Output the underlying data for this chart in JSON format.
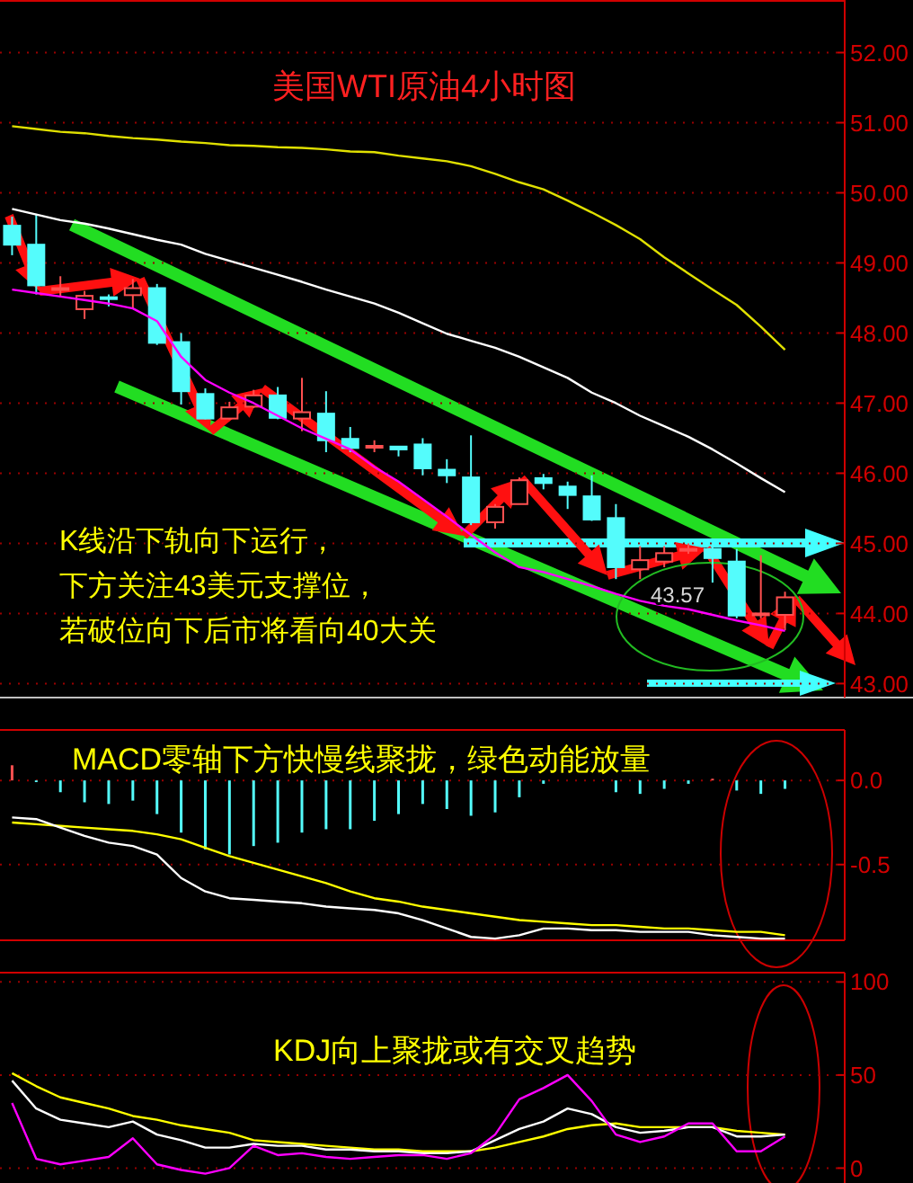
{
  "chart_data": [
    {
      "type": "candlestick",
      "title": "美国WTI原油4小时图",
      "categories": [
        null,
        null,
        null,
        null,
        null,
        null,
        null,
        null,
        null,
        null,
        null,
        null,
        null,
        null,
        null,
        null,
        null,
        null,
        null,
        null,
        null,
        null,
        null,
        null,
        null,
        null,
        null,
        null,
        null,
        null,
        null,
        null,
        null
      ],
      "ohlc": [
        [
          49.53,
          49.66,
          49.11,
          49.26
        ],
        [
          49.26,
          49.7,
          48.55,
          48.68
        ],
        [
          48.63,
          48.81,
          48.51,
          48.64
        ],
        [
          48.34,
          48.6,
          48.2,
          48.53
        ],
        [
          48.51,
          48.55,
          48.38,
          48.49
        ],
        [
          48.54,
          48.77,
          48.34,
          48.64
        ],
        [
          48.64,
          48.7,
          47.83,
          47.86
        ],
        [
          47.87,
          48.0,
          46.98,
          47.17
        ],
        [
          47.13,
          47.21,
          46.77,
          46.78
        ],
        [
          46.78,
          47.02,
          46.77,
          46.94
        ],
        [
          46.95,
          47.19,
          46.93,
          47.11
        ],
        [
          47.11,
          47.23,
          46.77,
          46.79
        ],
        [
          46.78,
          47.36,
          46.6,
          46.87
        ],
        [
          46.85,
          47.17,
          46.3,
          46.47
        ],
        [
          46.49,
          46.66,
          46.3,
          46.36
        ],
        [
          46.37,
          46.47,
          46.3,
          46.39
        ],
        [
          46.38,
          46.39,
          46.24,
          46.34
        ],
        [
          46.41,
          46.5,
          45.97,
          46.07
        ],
        [
          46.05,
          46.2,
          45.86,
          45.97
        ],
        [
          45.94,
          46.54,
          45.26,
          45.3
        ],
        [
          45.3,
          45.56,
          45.21,
          45.52
        ],
        [
          45.56,
          45.94,
          45.56,
          45.9
        ],
        [
          45.93,
          45.99,
          45.77,
          45.86
        ],
        [
          45.81,
          45.88,
          45.49,
          45.69
        ],
        [
          45.67,
          45.97,
          45.32,
          45.34
        ],
        [
          45.36,
          45.56,
          44.49,
          44.66
        ],
        [
          44.63,
          44.96,
          44.49,
          44.76
        ],
        [
          44.74,
          44.96,
          44.66,
          44.86
        ],
        [
          44.9,
          45.0,
          44.85,
          44.92
        ],
        [
          44.92,
          45.0,
          44.44,
          44.79
        ],
        [
          44.74,
          44.92,
          43.93,
          43.97
        ],
        [
          43.99,
          44.83,
          43.93,
          44.0
        ],
        [
          43.98,
          44.31,
          43.76,
          44.23
        ]
      ],
      "colors": [
        "#54fcfc",
        "#54fcfc",
        "#ff5050",
        "#ff5050",
        "#54fcfc",
        "#ff5050",
        "#54fcfc",
        "#54fcfc",
        "#54fcfc",
        "#ff5050",
        "#ff5050",
        "#54fcfc",
        "#ff5050",
        "#54fcfc",
        "#54fcfc",
        "#ff5050",
        "#54fcfc",
        "#54fcfc",
        "#54fcfc",
        "#54fcfc",
        "#ff5050",
        "#ff5050",
        "#54fcfc",
        "#54fcfc",
        "#54fcfc",
        "#54fcfc",
        "#ff5050",
        "#ff5050",
        "#ff5050",
        "#54fcfc",
        "#54fcfc",
        "#ff5050",
        "#ff5050"
      ],
      "series": [
        {
          "type": "line",
          "color": "#e0e000",
          "values": [
            50.95,
            50.91,
            50.87,
            50.85,
            50.81,
            50.78,
            50.76,
            50.73,
            50.71,
            50.68,
            50.67,
            50.65,
            50.64,
            50.62,
            50.59,
            50.58,
            50.53,
            50.49,
            50.45,
            50.38,
            50.27,
            50.15,
            50.05,
            49.89,
            49.72,
            49.54,
            49.34,
            49.08,
            48.85,
            48.62,
            48.4,
            48.09,
            47.76
          ]
        },
        {
          "type": "line",
          "color": "#ffffff",
          "values": [
            49.77,
            49.69,
            49.61,
            49.56,
            49.49,
            49.41,
            49.33,
            49.26,
            49.13,
            49.03,
            48.93,
            48.83,
            48.73,
            48.62,
            48.52,
            48.42,
            48.29,
            48.14,
            47.99,
            47.89,
            47.79,
            47.66,
            47.51,
            47.36,
            47.15,
            47.0,
            46.82,
            46.67,
            46.52,
            46.34,
            46.14,
            45.93,
            45.73
          ]
        },
        {
          "type": "line",
          "color": "#ff00ff",
          "values": [
            48.62,
            48.57,
            48.52,
            48.47,
            48.42,
            48.35,
            48.17,
            47.66,
            47.33,
            47.15,
            47.0,
            46.82,
            46.64,
            46.49,
            46.34,
            46.09,
            45.88,
            45.63,
            45.38,
            45.12,
            44.87,
            44.66,
            44.59,
            44.49,
            44.39,
            44.28,
            44.18,
            44.11,
            44.06,
            43.98,
            43.9,
            43.83,
            43.75
          ]
        }
      ],
      "ylim": [
        42.8,
        52.75
      ],
      "yticks": [
        {
          "value": 43,
          "label": "43.00"
        },
        {
          "value": 44,
          "label": "44.00"
        },
        {
          "value": 45,
          "label": "45.00"
        },
        {
          "value": 46,
          "label": "46.00"
        },
        {
          "value": 47,
          "label": "47.00"
        },
        {
          "value": 48,
          "label": "48.00"
        },
        {
          "value": 49,
          "label": "49.00"
        },
        {
          "value": 50,
          "label": "50.00"
        },
        {
          "value": 51,
          "label": "51.00"
        },
        {
          "value": 52,
          "label": "52.00"
        }
      ],
      "grid": "y",
      "tick_labels": "y",
      "annotations": [
        "K线沿下轨向下运行，",
        "下方关注43美元支撑位，",
        "若破位向下后市将看向40大关",
        "43.57"
      ]
    },
    {
      "type": "bar",
      "categories": [
        null,
        null,
        null,
        null,
        null,
        null,
        null,
        null,
        null,
        null,
        null,
        null,
        null,
        null,
        null,
        null,
        null,
        null,
        null,
        null,
        null,
        null,
        null,
        null,
        null,
        null,
        null,
        null,
        null,
        null,
        null,
        null,
        null
      ],
      "series": [
        {
          "type": "bar",
          "values": [
            0.09,
            -0.01,
            -0.07,
            -0.13,
            -0.14,
            -0.12,
            -0.2,
            -0.31,
            -0.41,
            -0.44,
            -0.39,
            -0.37,
            -0.31,
            -0.29,
            -0.29,
            -0.24,
            -0.2,
            -0.14,
            -0.17,
            -0.21,
            -0.19,
            -0.1,
            -0.02,
            null,
            null,
            -0.07,
            -0.08,
            -0.05,
            -0.02,
            0.01,
            -0.06,
            -0.08,
            -0.05
          ],
          "colors": [
            "#ff5050",
            "#54fcfc",
            "#54fcfc",
            "#54fcfc",
            "#54fcfc",
            "#54fcfc",
            "#54fcfc",
            "#54fcfc",
            "#54fcfc",
            "#54fcfc",
            "#54fcfc",
            "#54fcfc",
            "#54fcfc",
            "#54fcfc",
            "#54fcfc",
            "#54fcfc",
            "#54fcfc",
            "#54fcfc",
            "#54fcfc",
            "#54fcfc",
            "#54fcfc",
            "#54fcfc",
            "#54fcfc",
            null,
            null,
            "#54fcfc",
            "#54fcfc",
            "#54fcfc",
            "#54fcfc",
            "#ff5050",
            "#54fcfc",
            "#54fcfc",
            "#54fcfc"
          ]
        },
        {
          "type": "line",
          "color": "#ffff00",
          "values": [
            -0.25,
            -0.26,
            -0.27,
            -0.28,
            -0.29,
            -0.3,
            -0.32,
            -0.35,
            -0.4,
            -0.45,
            -0.49,
            -0.53,
            -0.57,
            -0.61,
            -0.66,
            -0.7,
            -0.72,
            -0.75,
            -0.77,
            -0.79,
            -0.81,
            -0.83,
            -0.84,
            -0.85,
            -0.86,
            -0.86,
            -0.87,
            -0.88,
            -0.88,
            -0.89,
            -0.9,
            -0.9,
            -0.92
          ]
        },
        {
          "type": "line",
          "color": "#ffffff",
          "values": [
            -0.22,
            -0.23,
            -0.28,
            -0.33,
            -0.37,
            -0.39,
            -0.44,
            -0.58,
            -0.66,
            -0.7,
            -0.71,
            -0.72,
            -0.73,
            -0.75,
            -0.76,
            -0.77,
            -0.79,
            -0.83,
            -0.88,
            -0.93,
            -0.94,
            -0.92,
            -0.88,
            -0.88,
            -0.89,
            -0.89,
            -0.9,
            -0.9,
            -0.9,
            -0.92,
            -0.93,
            -0.94,
            -0.94
          ]
        }
      ],
      "ylim": [
        -0.95,
        0.3
      ],
      "yticks": [
        {
          "value": -0.5,
          "label": "-0.5"
        },
        {
          "value": 0,
          "label": "0.0"
        }
      ],
      "grid": "y",
      "tick_labels": "y",
      "annotations": [
        "MACD零轴下方快慢线聚拢，绿色动能放量"
      ]
    },
    {
      "type": "line",
      "categories": [
        null,
        null,
        null,
        null,
        null,
        null,
        null,
        null,
        null,
        null,
        null,
        null,
        null,
        null,
        null,
        null,
        null,
        null,
        null,
        null,
        null,
        null,
        null,
        null,
        null,
        null,
        null,
        null,
        null,
        null,
        null,
        null,
        null
      ],
      "series": [
        {
          "type": "line",
          "color": "#ffff00",
          "values": [
            51,
            44,
            38,
            35,
            32,
            28,
            26,
            23,
            21,
            19,
            15,
            14,
            13,
            12,
            11,
            10,
            10,
            9,
            9,
            9,
            11,
            14,
            17,
            21,
            23,
            24,
            22,
            22,
            22,
            22,
            20,
            19,
            18
          ]
        },
        {
          "type": "line",
          "color": "#ffffff",
          "values": [
            47,
            32,
            26,
            24,
            22,
            25,
            18,
            15,
            11,
            11,
            13,
            12,
            12,
            10,
            10,
            9,
            9,
            8,
            8,
            9,
            15,
            21,
            25,
            32,
            29,
            22,
            19,
            20,
            22,
            22,
            17,
            17,
            18
          ]
        },
        {
          "type": "line",
          "color": "#ff00ff",
          "values": [
            35,
            5,
            2,
            4,
            6,
            16,
            2,
            -1,
            -3,
            0,
            12,
            7,
            8,
            6,
            5,
            6,
            7,
            7,
            5,
            8,
            18,
            37,
            43,
            50,
            36,
            18,
            14,
            17,
            24,
            24,
            9,
            9,
            17
          ]
        }
      ],
      "ylim": [
        -8,
        105
      ],
      "yticks": [
        0,
        50,
        100
      ],
      "grid": "y",
      "tick_labels": "y",
      "annotations": [
        "KDJ向上聚拢或有交叉趋势"
      ]
    }
  ]
}
